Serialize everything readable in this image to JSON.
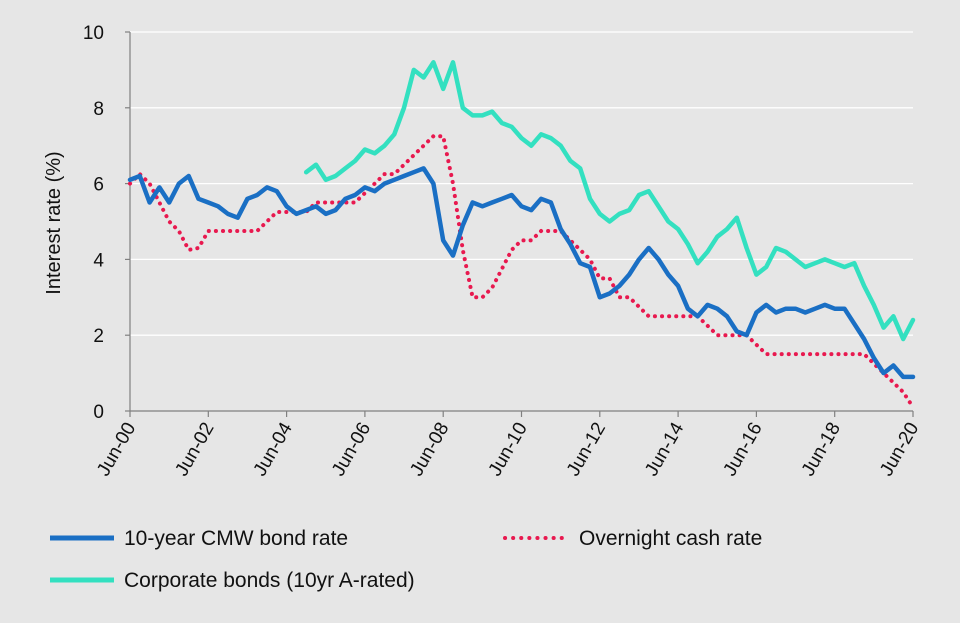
{
  "chart_data": {
    "type": "line",
    "title": "",
    "xlabel": "",
    "ylabel": "Interest rate (%)",
    "ylim": [
      0,
      10
    ],
    "yticks": [
      "0",
      "2",
      "4",
      "6",
      "8",
      "10"
    ],
    "xlim": [
      "2000-06",
      "2020-06"
    ],
    "xticks": [
      "Jun-00",
      "Jun-02",
      "Jun-04",
      "Jun-06",
      "Jun-08",
      "Jun-10",
      "Jun-12",
      "Jun-14",
      "Jun-16",
      "Jun-18",
      "Jun-20"
    ],
    "grid": "horizontal",
    "legend_position": "bottom",
    "series": [
      {
        "name": "10-year CMW bond rate",
        "color": "#1a6fc4",
        "style": "solid",
        "x": [
          "2000-06",
          "2000-09",
          "2000-12",
          "2001-03",
          "2001-06",
          "2001-09",
          "2001-12",
          "2002-03",
          "2002-06",
          "2002-09",
          "2002-12",
          "2003-03",
          "2003-06",
          "2003-09",
          "2003-12",
          "2004-03",
          "2004-06",
          "2004-09",
          "2004-12",
          "2005-03",
          "2005-06",
          "2005-09",
          "2005-12",
          "2006-03",
          "2006-06",
          "2006-09",
          "2006-12",
          "2007-03",
          "2007-06",
          "2007-09",
          "2007-12",
          "2008-03",
          "2008-06",
          "2008-09",
          "2008-12",
          "2009-03",
          "2009-06",
          "2009-09",
          "2009-12",
          "2010-03",
          "2010-06",
          "2010-09",
          "2010-12",
          "2011-03",
          "2011-06",
          "2011-09",
          "2011-12",
          "2012-03",
          "2012-06",
          "2012-09",
          "2012-12",
          "2013-03",
          "2013-06",
          "2013-09",
          "2013-12",
          "2014-03",
          "2014-06",
          "2014-09",
          "2014-12",
          "2015-03",
          "2015-06",
          "2015-09",
          "2015-12",
          "2016-03",
          "2016-06",
          "2016-09",
          "2016-12",
          "2017-03",
          "2017-06",
          "2017-09",
          "2017-12",
          "2018-03",
          "2018-06",
          "2018-09",
          "2018-12",
          "2019-03",
          "2019-06",
          "2019-09",
          "2019-12",
          "2020-03",
          "2020-06"
        ],
        "y": [
          6.1,
          6.2,
          5.5,
          5.9,
          5.5,
          6.0,
          6.2,
          5.6,
          5.5,
          5.4,
          5.2,
          5.1,
          5.6,
          5.7,
          5.9,
          5.8,
          5.4,
          5.2,
          5.3,
          5.4,
          5.2,
          5.3,
          5.6,
          5.7,
          5.9,
          5.8,
          6.0,
          6.1,
          6.2,
          6.3,
          6.4,
          6.0,
          4.5,
          4.1,
          4.9,
          5.5,
          5.4,
          5.5,
          5.6,
          5.7,
          5.4,
          5.3,
          5.6,
          5.5,
          4.8,
          4.4,
          3.9,
          3.8,
          3.0,
          3.1,
          3.3,
          3.6,
          4.0,
          4.3,
          4.0,
          3.6,
          3.3,
          2.7,
          2.5,
          2.8,
          2.7,
          2.5,
          2.1,
          2.0,
          2.6,
          2.8,
          2.6,
          2.7,
          2.7,
          2.6,
          2.7,
          2.8,
          2.7,
          2.7,
          2.3,
          1.9,
          1.4,
          1.0,
          1.2,
          0.9,
          0.9
        ]
      },
      {
        "name": "Overnight cash rate",
        "color": "#e8194f",
        "style": "dotted",
        "x": [
          "2000-06",
          "2000-09",
          "2000-12",
          "2001-03",
          "2001-06",
          "2001-09",
          "2001-12",
          "2002-03",
          "2002-06",
          "2002-09",
          "2002-12",
          "2003-03",
          "2003-06",
          "2003-09",
          "2003-12",
          "2004-03",
          "2004-06",
          "2004-09",
          "2004-12",
          "2005-03",
          "2005-06",
          "2005-09",
          "2005-12",
          "2006-03",
          "2006-06",
          "2006-09",
          "2006-12",
          "2007-03",
          "2007-06",
          "2007-09",
          "2007-12",
          "2008-03",
          "2008-06",
          "2008-09",
          "2008-12",
          "2009-03",
          "2009-06",
          "2009-09",
          "2009-12",
          "2010-03",
          "2010-06",
          "2010-09",
          "2010-12",
          "2011-03",
          "2011-06",
          "2011-09",
          "2011-12",
          "2012-03",
          "2012-06",
          "2012-09",
          "2012-12",
          "2013-03",
          "2013-06",
          "2013-09",
          "2013-12",
          "2014-03",
          "2014-06",
          "2014-09",
          "2014-12",
          "2015-03",
          "2015-06",
          "2015-09",
          "2015-12",
          "2016-03",
          "2016-06",
          "2016-09",
          "2016-12",
          "2017-03",
          "2017-06",
          "2017-09",
          "2017-12",
          "2018-03",
          "2018-06",
          "2018-09",
          "2018-12",
          "2019-03",
          "2019-06",
          "2019-09",
          "2019-12",
          "2020-03",
          "2020-06"
        ],
        "y": [
          6.0,
          6.25,
          6.0,
          5.5,
          5.0,
          4.75,
          4.25,
          4.3,
          4.75,
          4.75,
          4.75,
          4.75,
          4.75,
          4.75,
          5.0,
          5.25,
          5.25,
          5.25,
          5.25,
          5.5,
          5.5,
          5.5,
          5.5,
          5.5,
          5.75,
          6.0,
          6.25,
          6.25,
          6.5,
          6.75,
          7.0,
          7.25,
          7.25,
          6.0,
          4.25,
          3.0,
          3.0,
          3.25,
          3.75,
          4.25,
          4.5,
          4.5,
          4.75,
          4.75,
          4.75,
          4.5,
          4.25,
          4.0,
          3.5,
          3.5,
          3.0,
          3.0,
          2.75,
          2.5,
          2.5,
          2.5,
          2.5,
          2.5,
          2.5,
          2.25,
          2.0,
          2.0,
          2.0,
          2.0,
          1.75,
          1.5,
          1.5,
          1.5,
          1.5,
          1.5,
          1.5,
          1.5,
          1.5,
          1.5,
          1.5,
          1.5,
          1.25,
          1.0,
          0.75,
          0.5,
          0.1
        ]
      },
      {
        "name": "Corporate bonds (10yr A-rated)",
        "color": "#33e0c0",
        "style": "solid",
        "x": [
          "2004-12",
          "2005-03",
          "2005-06",
          "2005-09",
          "2005-12",
          "2006-03",
          "2006-06",
          "2006-09",
          "2006-12",
          "2007-03",
          "2007-06",
          "2007-09",
          "2007-12",
          "2008-03",
          "2008-06",
          "2008-09",
          "2008-12",
          "2009-03",
          "2009-06",
          "2009-09",
          "2009-12",
          "2010-03",
          "2010-06",
          "2010-09",
          "2010-12",
          "2011-03",
          "2011-06",
          "2011-09",
          "2011-12",
          "2012-03",
          "2012-06",
          "2012-09",
          "2012-12",
          "2013-03",
          "2013-06",
          "2013-09",
          "2013-12",
          "2014-03",
          "2014-06",
          "2014-09",
          "2014-12",
          "2015-03",
          "2015-06",
          "2015-09",
          "2015-12",
          "2016-03",
          "2016-06",
          "2016-09",
          "2016-12",
          "2017-03",
          "2017-06",
          "2017-09",
          "2017-12",
          "2018-03",
          "2018-06",
          "2018-09",
          "2018-12",
          "2019-03",
          "2019-06",
          "2019-09",
          "2019-12",
          "2020-03",
          "2020-06"
        ],
        "y": [
          6.3,
          6.5,
          6.1,
          6.2,
          6.4,
          6.6,
          6.9,
          6.8,
          7.0,
          7.3,
          8.0,
          9.0,
          8.8,
          9.2,
          8.5,
          9.2,
          8.0,
          7.8,
          7.8,
          7.9,
          7.6,
          7.5,
          7.2,
          7.0,
          7.3,
          7.2,
          7.0,
          6.6,
          6.4,
          5.6,
          5.2,
          5.0,
          5.2,
          5.3,
          5.7,
          5.8,
          5.4,
          5.0,
          4.8,
          4.4,
          3.9,
          4.2,
          4.6,
          4.8,
          5.1,
          4.3,
          3.6,
          3.8,
          4.3,
          4.2,
          4.0,
          3.8,
          3.9,
          4.0,
          3.9,
          3.8,
          3.9,
          3.3,
          2.8,
          2.2,
          2.5,
          1.9,
          2.4
        ]
      }
    ]
  }
}
